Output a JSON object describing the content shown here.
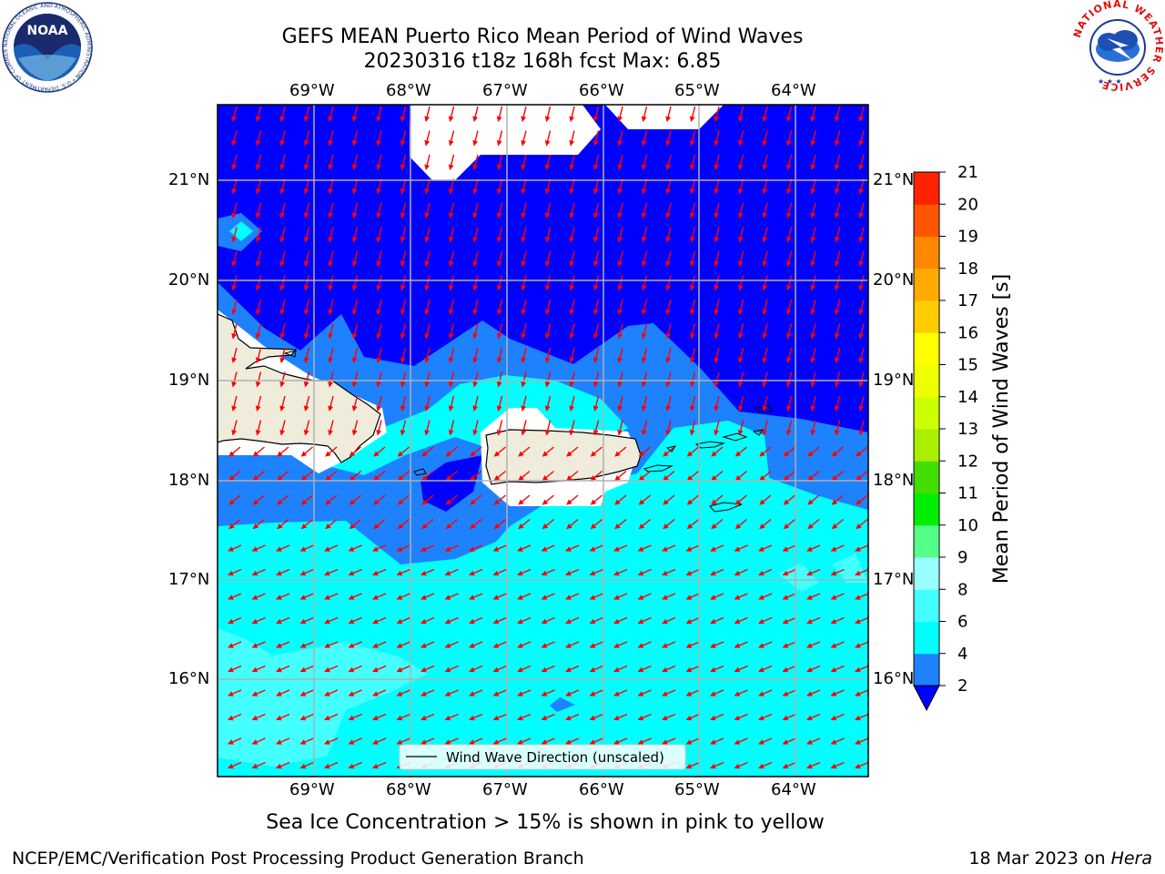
{
  "header": {
    "title_line1": "GEFS MEAN Puerto Rico Mean Period of Wind Waves",
    "title_line2": "20230316 t18z 168h fcst   Max: 6.85"
  },
  "map": {
    "lon_labels": [
      "69°W",
      "68°W",
      "67°W",
      "66°W",
      "65°W",
      "64°W"
    ],
    "lat_labels": [
      "21°N",
      "20°N",
      "19°N",
      "18°N",
      "17°N",
      "16°N"
    ],
    "legend_label": "Wind Wave Direction (unscaled)",
    "colors": {
      "ocean_deep": "#0000ff",
      "ocean_mid": "#1e82ff",
      "ocean_light": "#00ffff",
      "ocean_pale": "#44ffff",
      "land": "#efecdc",
      "arrow": "#ff0000",
      "grid": "#b0b0b0"
    }
  },
  "colorbar": {
    "title": "Mean Period of Wind Waves [s]",
    "ticks": [
      "2",
      "4",
      "6",
      "8",
      "9",
      "10",
      "11",
      "12",
      "13",
      "14",
      "15",
      "16",
      "17",
      "18",
      "19",
      "20",
      "21"
    ],
    "colors": [
      "#1e82ff",
      "#00ffff",
      "#44ffff",
      "#99ffff",
      "#55ff88",
      "#00ee00",
      "#44dd00",
      "#aaee00",
      "#ccff00",
      "#eeff00",
      "#ffff00",
      "#ffcc00",
      "#ffaa00",
      "#ff8800",
      "#ff5500",
      "#ff2200"
    ],
    "under_color": "#0000ff"
  },
  "logos": {
    "noaa_text": "NOAA",
    "noaa_ring_text": "NATIONAL OCEANIC AND ATMOSPHERIC ADMINISTRATION • U.S. DEPARTMENT OF COMMERCE",
    "nws_ring_text": "NATIONAL WEATHER SERVICE"
  },
  "footer": {
    "note": "Sea Ice Concentration > 15% is shown in pink to yellow",
    "org": "NCEP/EMC/Verification Post Processing Product Generation Branch",
    "date_prefix": "18 Mar 2023 on ",
    "machine": "Hera"
  }
}
